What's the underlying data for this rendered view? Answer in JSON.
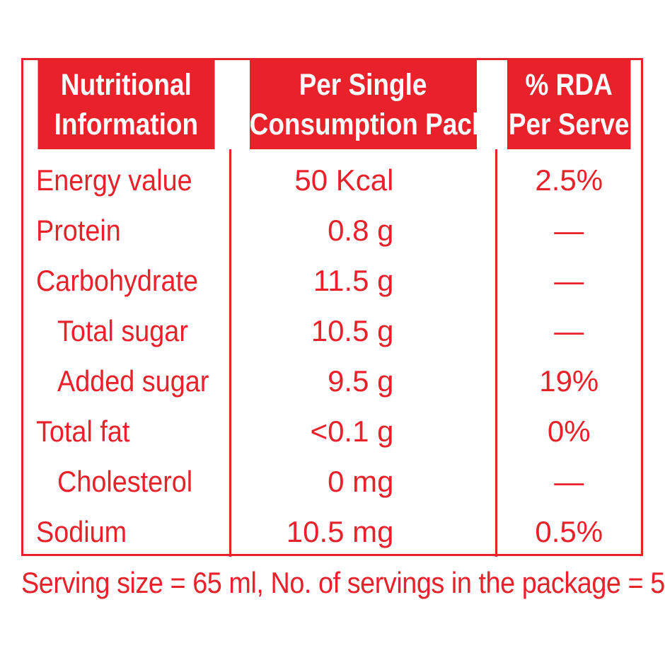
{
  "header": {
    "col1_line1": "Nutritional",
    "col1_line2": "Information",
    "col2_line1": "Per Single",
    "col2_line2": "Consumption Pack",
    "col3_line1": "% RDA",
    "col3_line2": "Per Serve"
  },
  "rows": [
    {
      "name": "Energy value",
      "value": "50 Kcal",
      "rda": "2.5%"
    },
    {
      "name": "Protein",
      "value": "0.8 g",
      "rda": "—"
    },
    {
      "name": "Carbohydrate",
      "value": "11.5 g",
      "rda": "—"
    },
    {
      "name": "Total sugar",
      "value": "10.5 g",
      "rda": "—"
    },
    {
      "name": "Added sugar",
      "value": "9.5 g",
      "rda": "19%"
    },
    {
      "name": "Total fat",
      "value": "<0.1 g",
      "rda": "0%"
    },
    {
      "name": "Cholesterol",
      "value": "0 mg",
      "rda": "—"
    },
    {
      "name": "Sodium",
      "value": "10.5 mg",
      "rda": "0.5%"
    }
  ],
  "footer": "Serving size = 65 ml, No. of servings in the package = 5",
  "colors": {
    "accent": "#e8212a",
    "background": "#ffffff"
  }
}
